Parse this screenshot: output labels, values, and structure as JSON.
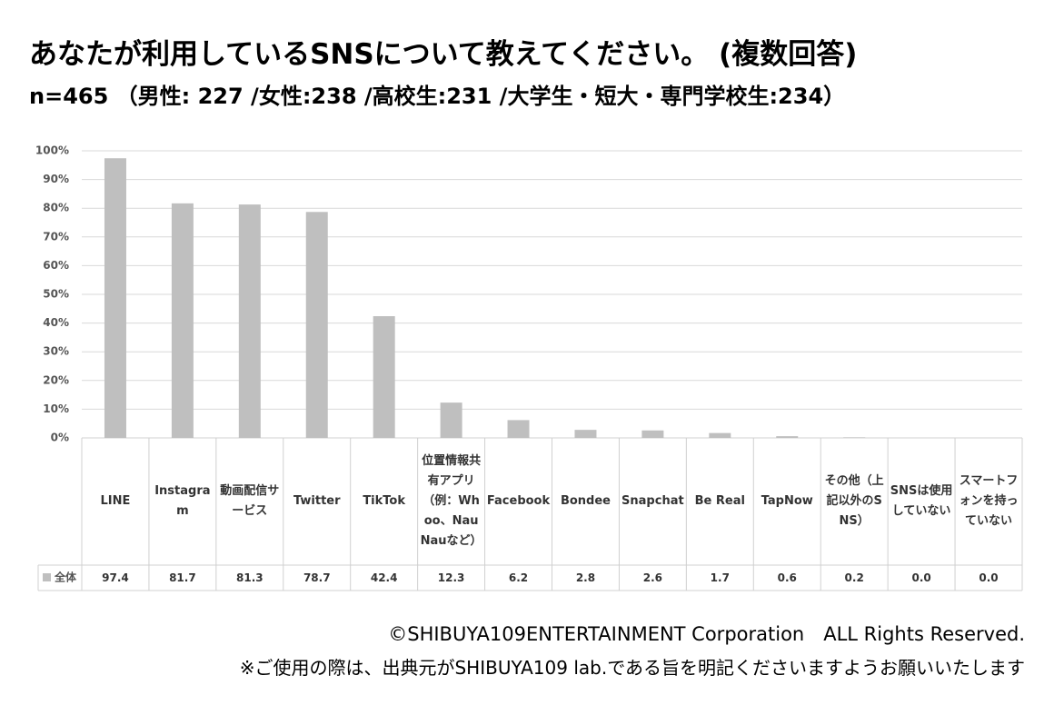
{
  "chart_data": {
    "type": "bar",
    "title": "あなたが利用しているSNSについて教えてください。 (複数回答)",
    "subtitle": "n=465 （男性: 227 /女性:238 /高校生:231 /大学生・短大・専門学校生:234）",
    "categories": [
      "LINE",
      "Instagram",
      "動画配信サービス",
      "Twitter",
      "TikTok",
      "位置情報共有アプリ（例：Whoo、NauNauなど）",
      "Facebook",
      "Bondee",
      "Snapchat",
      "Be Real",
      "TapNow",
      "その他（上記以外のSNS）",
      "SNSは使用していない",
      "スマートフォンを持っていない"
    ],
    "series": [
      {
        "name": "全体",
        "color": "#bfbfbf",
        "values": [
          97.4,
          81.7,
          81.3,
          78.7,
          42.4,
          12.3,
          6.2,
          2.8,
          2.6,
          1.7,
          0.6,
          0.2,
          0.0,
          0.0
        ],
        "value_labels": [
          "97.4",
          "81.7",
          "81.3",
          "78.7",
          "42.4",
          "12.3",
          "6.2",
          "2.8",
          "2.6",
          "1.7",
          "0.6",
          "0.2",
          "0.0",
          "0.0"
        ]
      }
    ],
    "ylim": [
      0,
      100
    ],
    "yticks": [
      {
        "value": 0,
        "label": "0%"
      },
      {
        "value": 10,
        "label": "10%"
      },
      {
        "value": 20,
        "label": "20%"
      },
      {
        "value": 30,
        "label": "30%"
      },
      {
        "value": 40,
        "label": "40%"
      },
      {
        "value": 50,
        "label": "50%"
      },
      {
        "value": 60,
        "label": "60%"
      },
      {
        "value": 70,
        "label": "70%"
      },
      {
        "value": 80,
        "label": "80%"
      },
      {
        "value": 90,
        "label": "90%"
      },
      {
        "value": 100,
        "label": "100%"
      }
    ],
    "grid": true
  },
  "footer": {
    "copyright": "©SHIBUYA109ENTERTAINMENT Corporation　ALL Rights Reserved.",
    "note": "※ご使用の際は、出典元がSHIBUYA109 lab.である旨を明記くださいますようお願いいたします"
  }
}
